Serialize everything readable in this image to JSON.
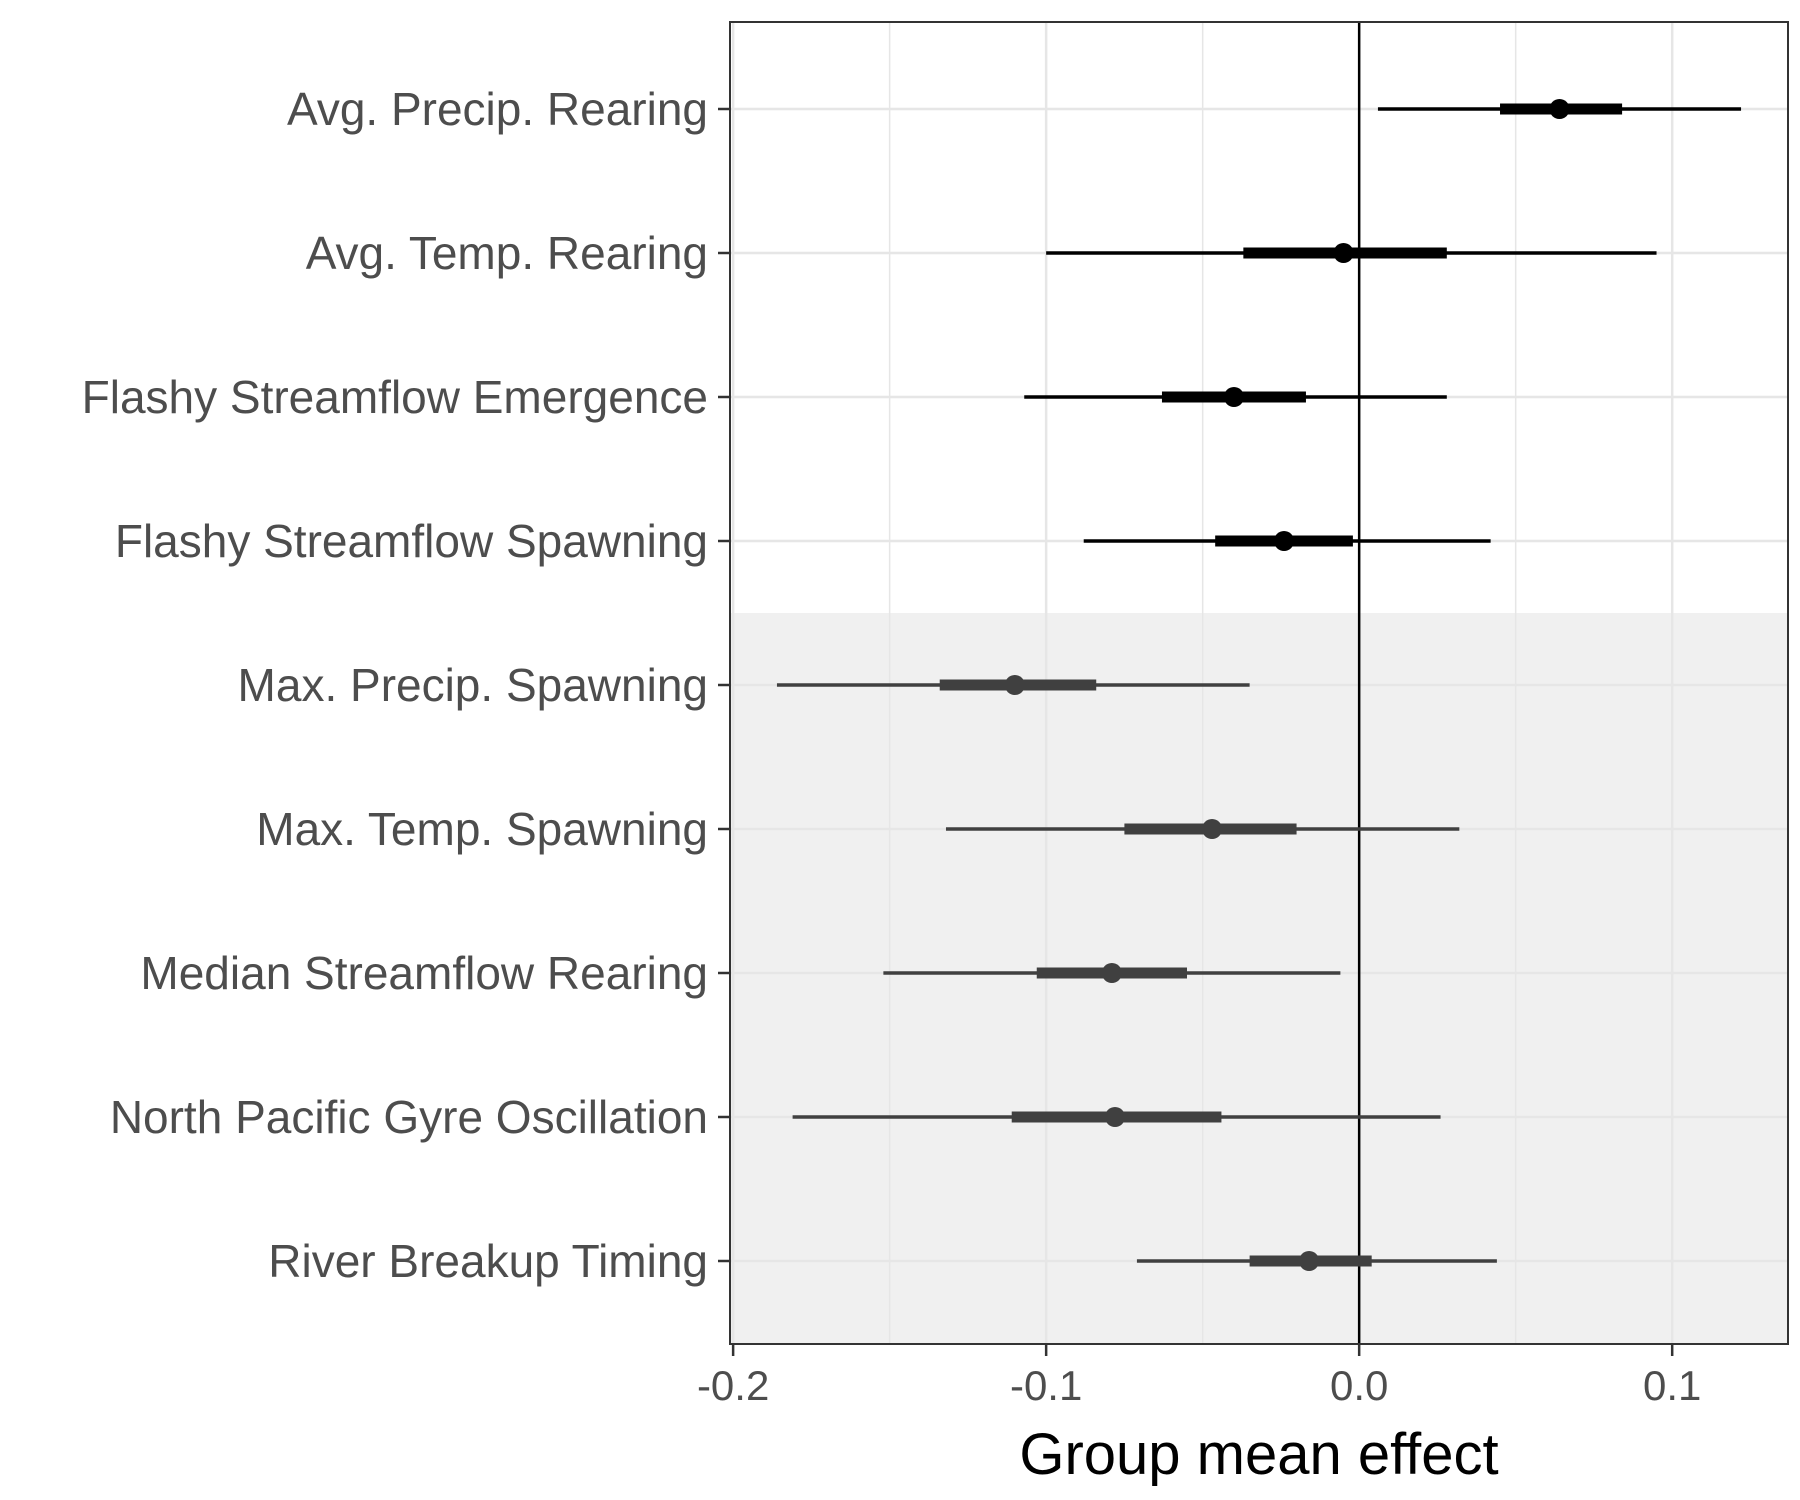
{
  "chart_data": {
    "type": "forest",
    "xlabel": "Group mean effect",
    "ylabel": "",
    "xlim": [
      -0.201,
      0.137
    ],
    "x_ticks": [
      -0.2,
      -0.1,
      0.0,
      0.1
    ],
    "x_tick_labels": [
      "-0.2",
      "-0.1",
      "0.0",
      "0.1"
    ],
    "grid": true,
    "reference_line": 0.0,
    "shaded_region": "rows Max. Precip. Spawning through River Breakup Timing",
    "colors": {
      "highlight_series": "#000000",
      "muted_series": "#404040",
      "shaded_background": "#f0f0f0",
      "grid": "#e6e6e6"
    },
    "rows": [
      {
        "label": "Avg. Precip. Rearing",
        "mean": 0.064,
        "inner": [
          0.045,
          0.084
        ],
        "outer": [
          0.006,
          0.122
        ],
        "shaded": false
      },
      {
        "label": "Avg. Temp. Rearing",
        "mean": -0.005,
        "inner": [
          -0.037,
          0.028
        ],
        "outer": [
          -0.1,
          0.095
        ],
        "shaded": false
      },
      {
        "label": "Flashy Streamflow Emergence",
        "mean": -0.04,
        "inner": [
          -0.063,
          -0.017
        ],
        "outer": [
          -0.107,
          0.028
        ],
        "shaded": false
      },
      {
        "label": "Flashy Streamflow Spawning",
        "mean": -0.024,
        "inner": [
          -0.046,
          -0.002
        ],
        "outer": [
          -0.088,
          0.042
        ],
        "shaded": false
      },
      {
        "label": "Max. Precip. Spawning",
        "mean": -0.11,
        "inner": [
          -0.134,
          -0.084
        ],
        "outer": [
          -0.186,
          -0.035
        ],
        "shaded": true
      },
      {
        "label": "Max. Temp. Spawning",
        "mean": -0.047,
        "inner": [
          -0.075,
          -0.02
        ],
        "outer": [
          -0.132,
          0.032
        ],
        "shaded": true
      },
      {
        "label": "Median Streamflow Rearing",
        "mean": -0.079,
        "inner": [
          -0.103,
          -0.055
        ],
        "outer": [
          -0.152,
          -0.006
        ],
        "shaded": true
      },
      {
        "label": "North Pacific Gyre Oscillation",
        "mean": -0.078,
        "inner": [
          -0.111,
          -0.044
        ],
        "outer": [
          -0.181,
          0.026
        ],
        "shaded": true
      },
      {
        "label": "River Breakup Timing",
        "mean": -0.016,
        "inner": [
          -0.035,
          0.004
        ],
        "outer": [
          -0.071,
          0.044
        ],
        "shaded": true
      }
    ]
  }
}
